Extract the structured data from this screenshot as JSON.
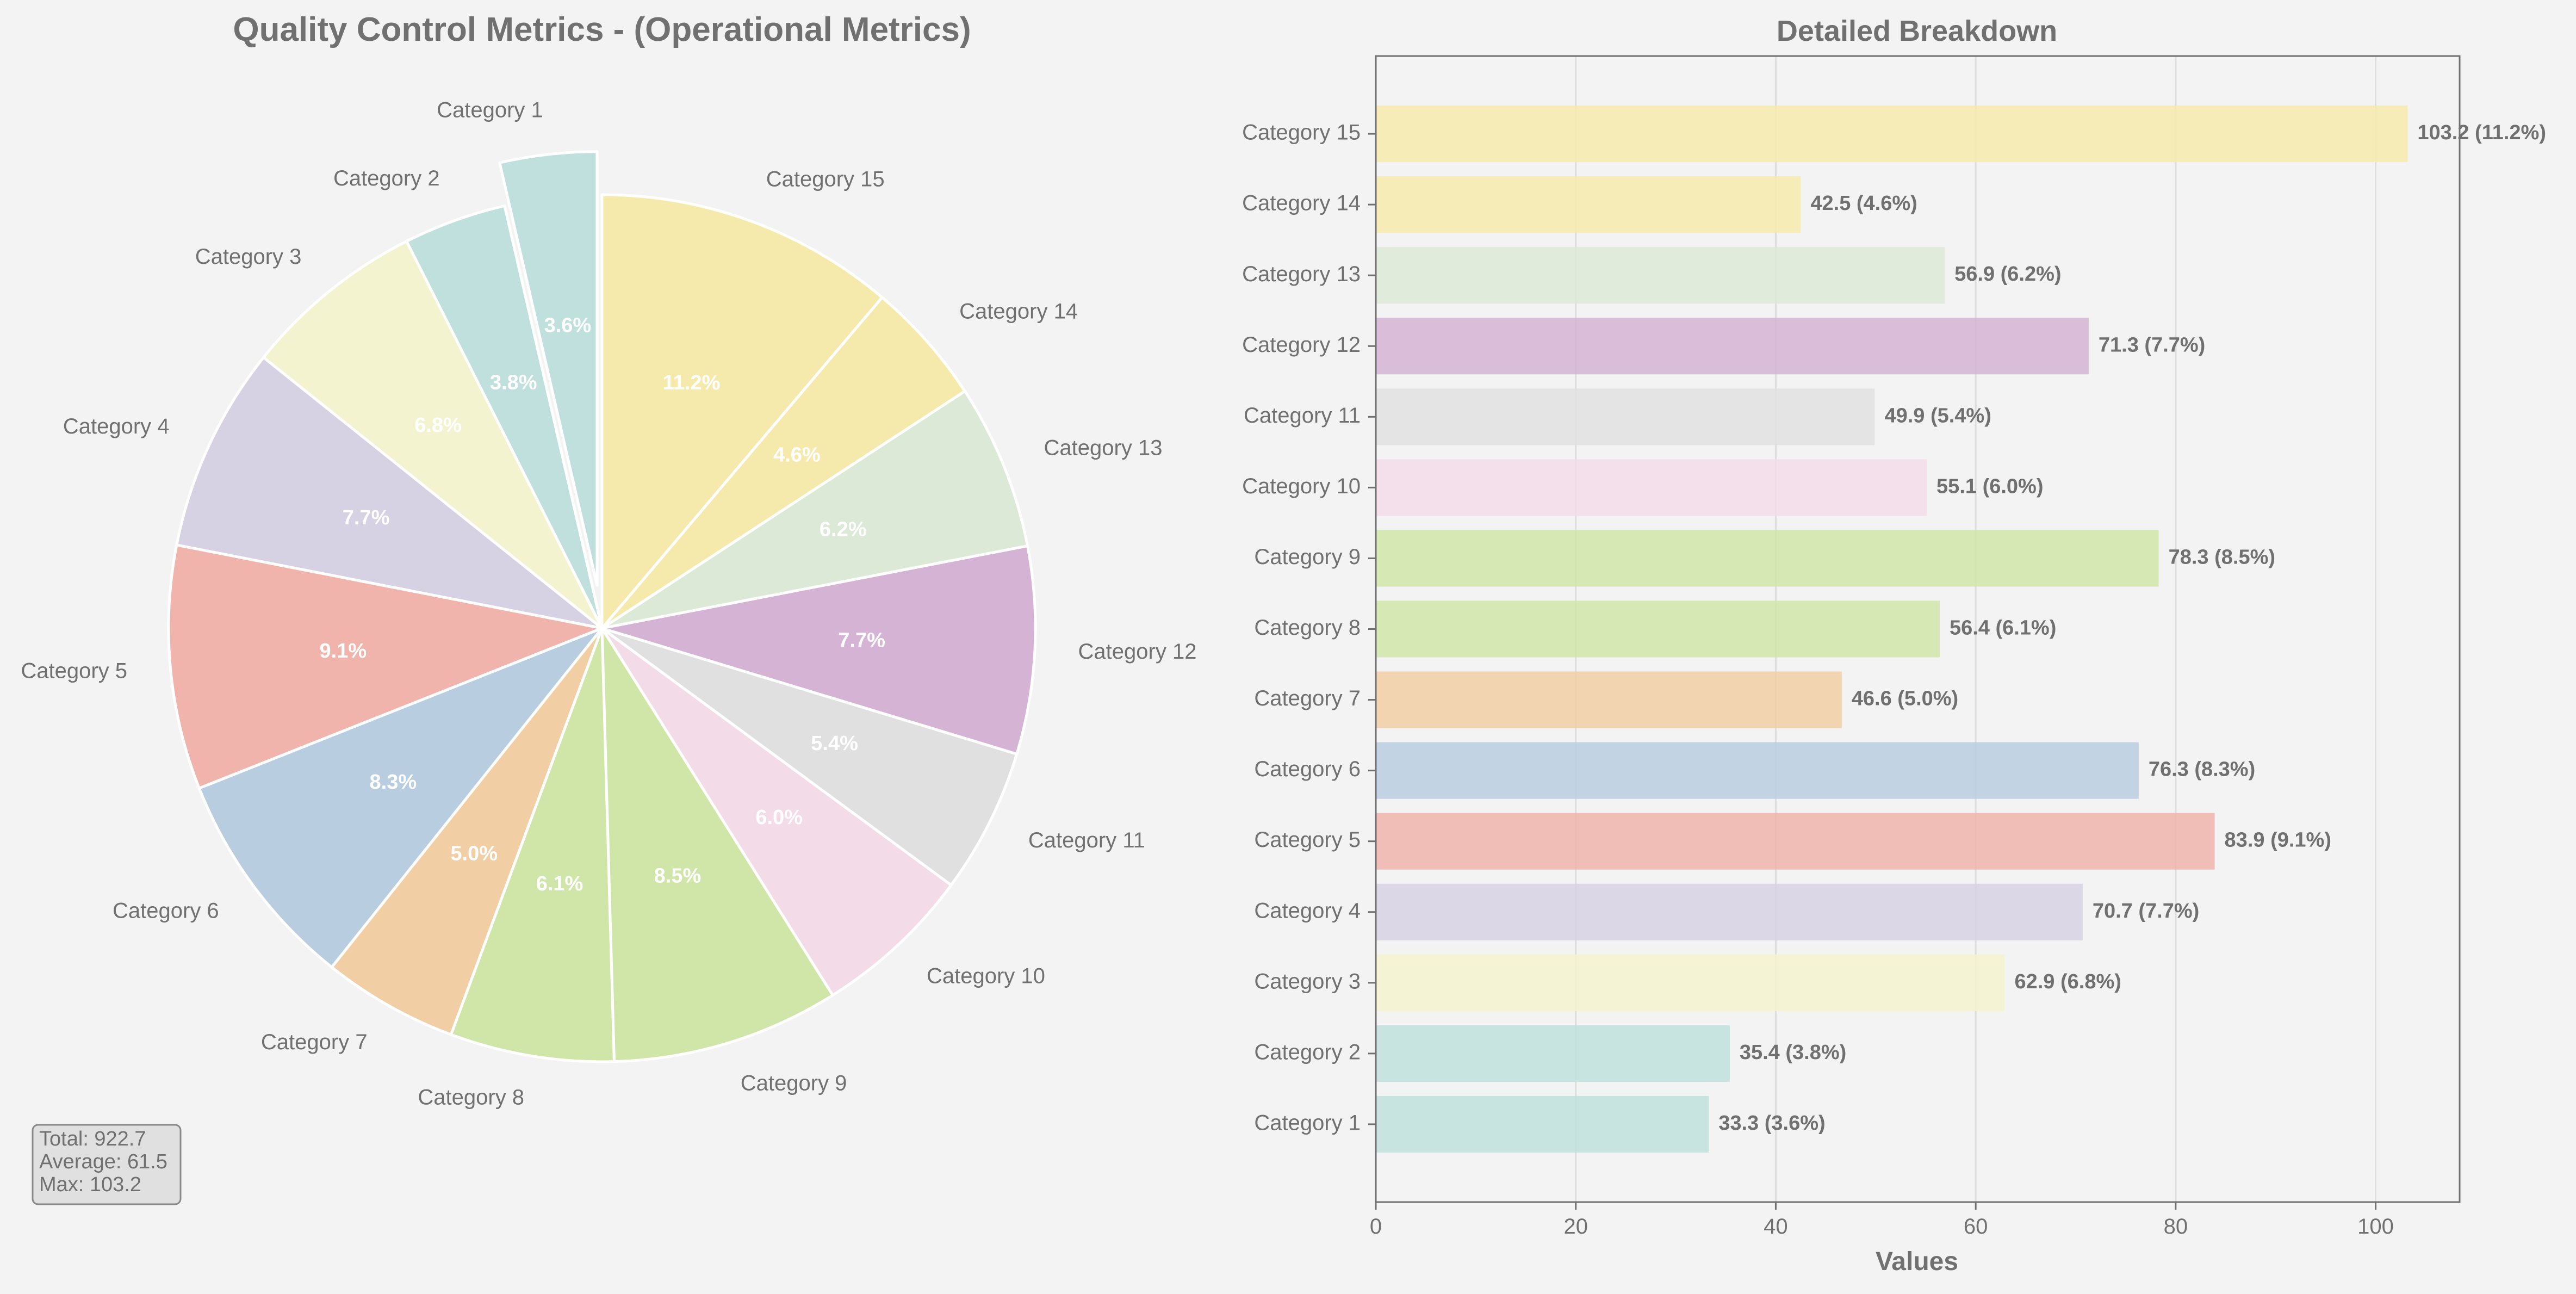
{
  "chart_data": [
    {
      "type": "pie",
      "title": "Quality Control Metrics - (Operational Metrics)",
      "categories": [
        "Category 1",
        "Category 2",
        "Category 3",
        "Category 4",
        "Category 5",
        "Category 6",
        "Category 7",
        "Category 8",
        "Category 9",
        "Category 10",
        "Category 11",
        "Category 12",
        "Category 13",
        "Category 14",
        "Category 15"
      ],
      "values": [
        33.3,
        35.4,
        62.9,
        70.7,
        83.9,
        76.3,
        46.6,
        56.4,
        78.3,
        55.1,
        49.9,
        71.3,
        56.9,
        42.5,
        103.2
      ],
      "percent_labels": [
        "3.6%",
        "3.8%",
        "6.8%",
        "7.7%",
        "9.1%",
        "8.3%",
        "5.0%",
        "6.1%",
        "8.5%",
        "6.0%",
        "5.4%",
        "7.7%",
        "6.2%",
        "4.6%",
        "11.2%"
      ],
      "colors": [
        "#bfe0dc",
        "#bfe0dc",
        "#f3f3cf",
        "#d6d1e3",
        "#f0b4ac",
        "#b8cde0",
        "#f1cea4",
        "#d0e5a8",
        "#d0e5a8",
        "#f3dce8",
        "#e0e0e0",
        "#d5b3d4",
        "#dce9d6",
        "#f5eaac",
        "#f5eaac"
      ],
      "exploded": [
        "Category 1"
      ],
      "start": "top, counterclockwise",
      "stats_box": {
        "total": "Total: 922.7",
        "average": "Average: 61.5",
        "max": "Max: 103.2"
      }
    },
    {
      "type": "bar",
      "orientation": "horizontal",
      "title": "Detailed Breakdown",
      "xlabel": "Values",
      "ylabel": "",
      "xlim": [
        0,
        108.4
      ],
      "xticks": [
        "0",
        "20",
        "40",
        "60",
        "80",
        "100"
      ],
      "grid": "vertical",
      "categories": [
        "Category 1",
        "Category 2",
        "Category 3",
        "Category 4",
        "Category 5",
        "Category 6",
        "Category 7",
        "Category 8",
        "Category 9",
        "Category 10",
        "Category 11",
        "Category 12",
        "Category 13",
        "Category 14",
        "Category 15"
      ],
      "values": [
        33.3,
        35.4,
        62.9,
        70.7,
        83.9,
        76.3,
        46.6,
        56.4,
        78.3,
        55.1,
        49.9,
        71.3,
        56.9,
        42.5,
        103.2
      ],
      "value_labels": [
        "33.3 (3.6%)",
        "35.4 (3.8%)",
        "62.9 (6.8%)",
        "70.7 (7.7%)",
        "83.9 (9.1%)",
        "76.3 (8.3%)",
        "46.6 (5.0%)",
        "56.4 (6.1%)",
        "78.3 (8.5%)",
        "55.1 (6.0%)",
        "49.9 (5.4%)",
        "71.3 (7.7%)",
        "56.9 (6.2%)",
        "42.5 (4.6%)",
        "103.2 (11.2%)"
      ],
      "colors": [
        "#bfe0dc",
        "#bfe0dc",
        "#f3f3cf",
        "#d6d1e3",
        "#f0b4ac",
        "#b8cde0",
        "#f1cea4",
        "#d0e5a8",
        "#d0e5a8",
        "#f3dce8",
        "#e0e0e0",
        "#d5b3d4",
        "#dce9d6",
        "#f5eaac",
        "#f5eaac"
      ]
    }
  ]
}
